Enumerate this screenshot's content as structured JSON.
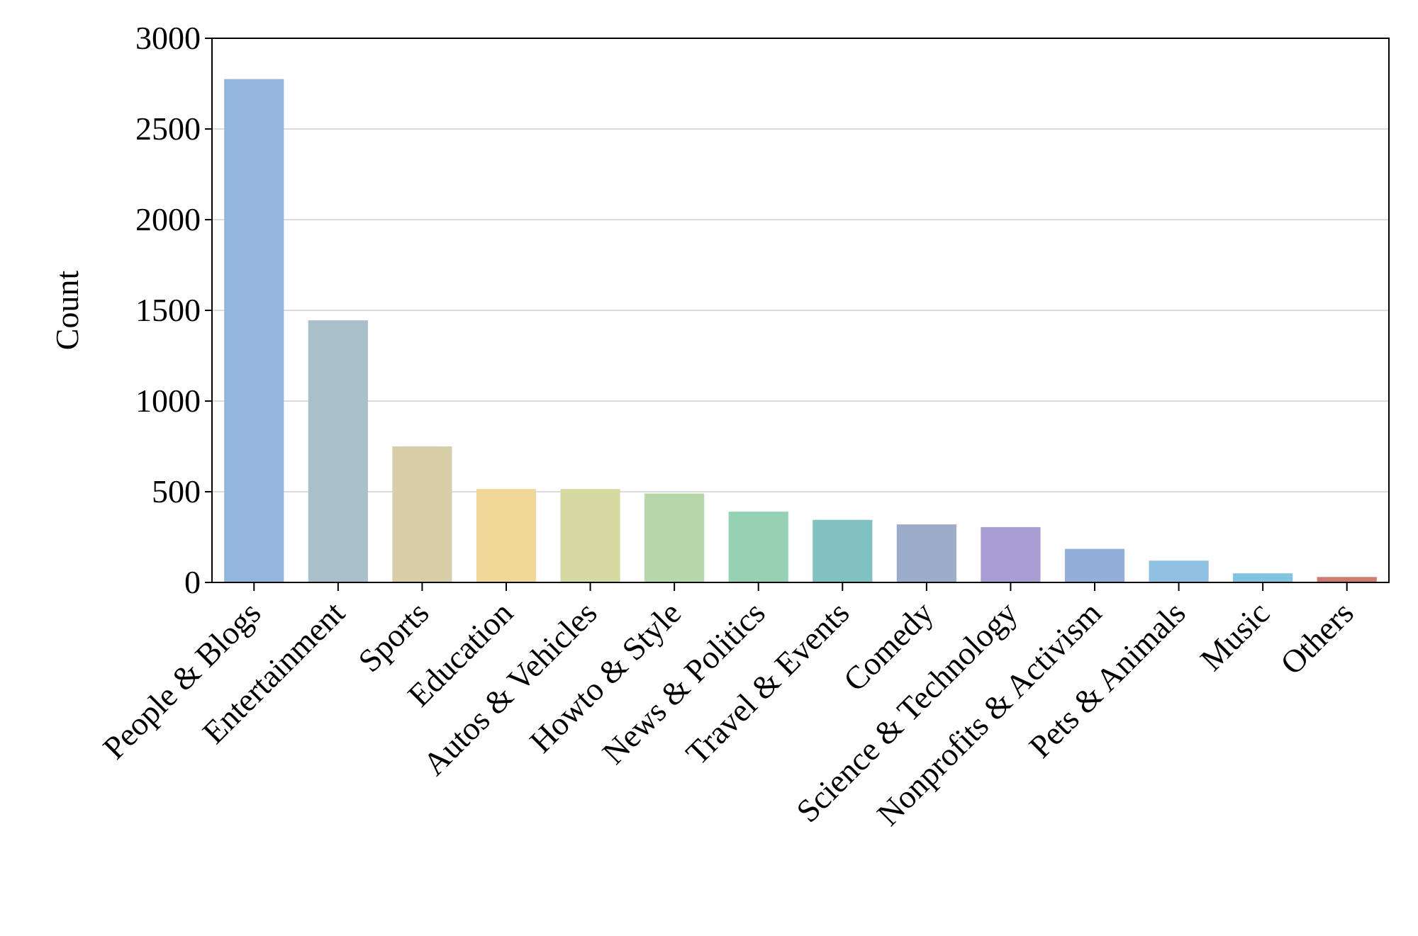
{
  "chart_data": {
    "type": "bar",
    "y_label": "Count",
    "categories": [
      "People & Blogs",
      "Entertainment",
      "Sports",
      "Education",
      "Autos & Vehicles",
      "Howto & Style",
      "News & Politics",
      "Travel & Events",
      "Comedy",
      "Science & Technology",
      "Nonprofits & Activism",
      "Pets & Animals",
      "Music",
      "Others"
    ],
    "values": [
      2775,
      1445,
      750,
      515,
      515,
      490,
      390,
      345,
      320,
      305,
      185,
      120,
      50,
      30
    ],
    "colors": [
      "#93b5de",
      "#a9bfca",
      "#d8cfa9",
      "#f1d797",
      "#d5daa1",
      "#b6d7a9",
      "#94d2b3",
      "#7fc2c1",
      "#9cacca",
      "#a89dd4",
      "#93aed9",
      "#8fbfe1",
      "#82c3e0",
      "#d07b6e"
    ],
    "ylim": [
      0,
      3000
    ],
    "yticks": [
      0,
      500,
      1000,
      1500,
      2000,
      2500,
      3000
    ],
    "grid": true
  }
}
